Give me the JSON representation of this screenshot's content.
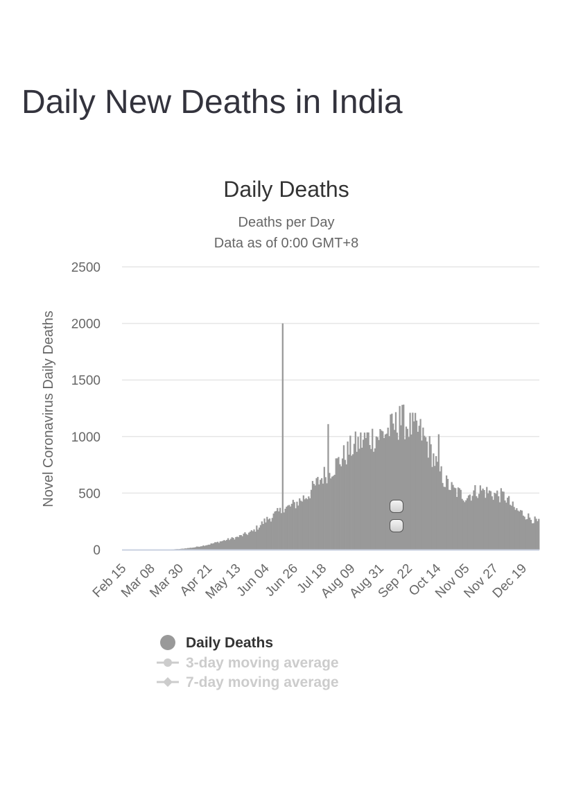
{
  "page": {
    "title": "Daily New Deaths in India"
  },
  "chart_data": {
    "type": "bar",
    "title": "Daily Deaths",
    "subtitle_lines": [
      "Deaths per Day",
      "Data as of 0:00 GMT+8"
    ],
    "ylabel": "Novel Coronavirus Daily Deaths",
    "xlabel": "",
    "ylim": [
      0,
      2500
    ],
    "yticks": [
      0,
      500,
      1000,
      1500,
      2000,
      2500
    ],
    "grid": true,
    "bar_color": "#999999",
    "start_date": "2020-02-15",
    "end_date": "2020-12-31",
    "xtick_labels": [
      "Feb 15",
      "Mar 08",
      "Mar 30",
      "Apr 21",
      "May 13",
      "Jun 04",
      "Jun 26",
      "Jul 18",
      "Aug 09",
      "Aug 31",
      "Sep 22",
      "Oct 14",
      "Nov 05",
      "Nov 27",
      "Dec 19"
    ],
    "xticks_every_days": 22,
    "trend_points": [
      [
        "2020-02-15",
        0
      ],
      [
        "2020-03-20",
        1
      ],
      [
        "2020-03-30",
        6
      ],
      [
        "2020-04-10",
        20
      ],
      [
        "2020-04-21",
        45
      ],
      [
        "2020-05-01",
        75
      ],
      [
        "2020-05-13",
        110
      ],
      [
        "2020-05-25",
        160
      ],
      [
        "2020-06-04",
        260
      ],
      [
        "2020-06-14",
        330
      ],
      [
        "2020-06-26",
        400
      ],
      [
        "2020-07-06",
        480
      ],
      [
        "2020-07-18",
        650
      ],
      [
        "2020-07-28",
        750
      ],
      [
        "2020-08-09",
        900
      ],
      [
        "2020-08-20",
        980
      ],
      [
        "2020-08-31",
        1010
      ],
      [
        "2020-09-10",
        1080
      ],
      [
        "2020-09-17",
        1140
      ],
      [
        "2020-09-24",
        1080
      ],
      [
        "2020-10-01",
        1040
      ],
      [
        "2020-10-08",
        900
      ],
      [
        "2020-10-14",
        730
      ],
      [
        "2020-10-20",
        600
      ],
      [
        "2020-10-27",
        520
      ],
      [
        "2020-11-05",
        470
      ],
      [
        "2020-11-15",
        530
      ],
      [
        "2020-11-27",
        490
      ],
      [
        "2020-12-05",
        470
      ],
      [
        "2020-12-12",
        360
      ],
      [
        "2020-12-19",
        320
      ],
      [
        "2020-12-26",
        270
      ],
      [
        "2020-12-31",
        240
      ]
    ],
    "spikes": [
      [
        "2020-06-17",
        2000
      ],
      [
        "2020-07-22",
        1110
      ],
      [
        "2020-10-15",
        1020
      ],
      [
        "2020-09-15",
        1270
      ]
    ],
    "series": [
      {
        "name": "Daily Deaths",
        "color": "#999999",
        "enabled": true
      },
      {
        "name": "3-day moving average",
        "color": "#cccccc",
        "enabled": false
      },
      {
        "name": "7-day moving average",
        "color": "#cccccc",
        "enabled": false
      }
    ],
    "legend_position": "bottom"
  }
}
